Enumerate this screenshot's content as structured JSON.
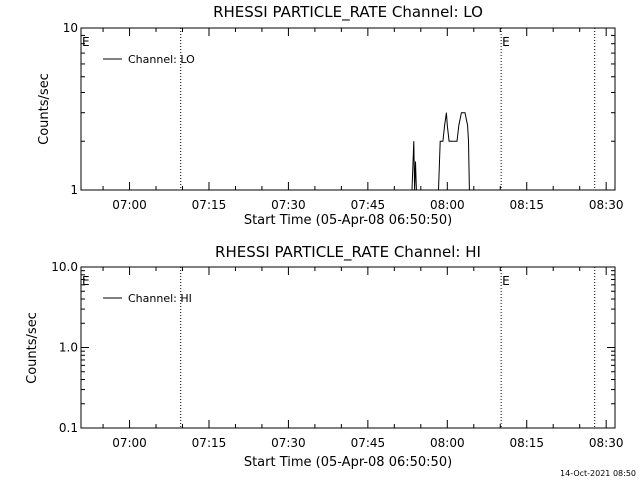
{
  "footer": {
    "timestamp": "14-Oct-2021 08:50"
  },
  "chart_data": [
    {
      "type": "line",
      "title": "RHESSI PARTICLE_RATE Channel: LO",
      "xlabel": "Start Time (05-Apr-08 06:50:50)",
      "ylabel": "Counts/sec",
      "y_scale": "log",
      "ylim": [
        1,
        10
      ],
      "y_ticks": [
        1,
        10
      ],
      "y_tick_labels": [
        "1",
        "10"
      ],
      "xlim": [
        "06:50:50",
        "08:31:40"
      ],
      "x_ticks": [
        "07:00",
        "07:15",
        "07:30",
        "07:45",
        "08:00",
        "08:15",
        "08:30"
      ],
      "legend": {
        "position": "top-left",
        "entries": [
          "Channel: LO"
        ]
      },
      "markers": [
        {
          "time": "06:50:50",
          "label": "E"
        },
        {
          "time": "07:09:40",
          "label": ""
        },
        {
          "time": "08:10:10",
          "label": "E"
        },
        {
          "time": "08:27:50",
          "label": ""
        }
      ],
      "series": [
        {
          "name": "Channel: LO",
          "x": [
            "07:53:20",
            "07:53:40",
            "07:53:50",
            "07:54:00",
            "07:54:10",
            "07:58:20",
            "07:58:40",
            "07:59:10",
            "07:59:30",
            "07:59:50",
            "08:00:00",
            "08:00:20",
            "08:00:40",
            "08:01:10",
            "08:01:30",
            "08:01:50",
            "08:02:10",
            "08:02:40",
            "08:03:00",
            "08:03:10",
            "08:03:20",
            "08:03:50",
            "08:04:00",
            "08:04:10",
            "08:04:40"
          ],
          "values": [
            1,
            2,
            1,
            1.5,
            1,
            1,
            2,
            2,
            2.5,
            3,
            2.5,
            2,
            2,
            2,
            2,
            2,
            2.5,
            3,
            3,
            3,
            3,
            2.5,
            2,
            1,
            1
          ]
        }
      ]
    },
    {
      "type": "line",
      "title": "RHESSI PARTICLE_RATE Channel: HI",
      "xlabel": "Start Time (05-Apr-08 06:50:50)",
      "ylabel": "Counts/sec",
      "y_scale": "log",
      "ylim": [
        0.1,
        10
      ],
      "y_ticks": [
        0.1,
        1,
        10
      ],
      "y_tick_labels": [
        "0.1",
        "1.0",
        "10.0"
      ],
      "xlim": [
        "06:50:50",
        "08:31:40"
      ],
      "x_ticks": [
        "07:00",
        "07:15",
        "07:30",
        "07:45",
        "08:00",
        "08:15",
        "08:30"
      ],
      "legend": {
        "position": "top-left",
        "entries": [
          "Channel: HI"
        ]
      },
      "markers": [
        {
          "time": "06:50:50",
          "label": "E"
        },
        {
          "time": "07:09:40",
          "label": ""
        },
        {
          "time": "08:10:10",
          "label": "E"
        },
        {
          "time": "08:27:50",
          "label": ""
        }
      ],
      "series": [
        {
          "name": "Channel: HI",
          "x": [],
          "values": []
        }
      ]
    }
  ]
}
